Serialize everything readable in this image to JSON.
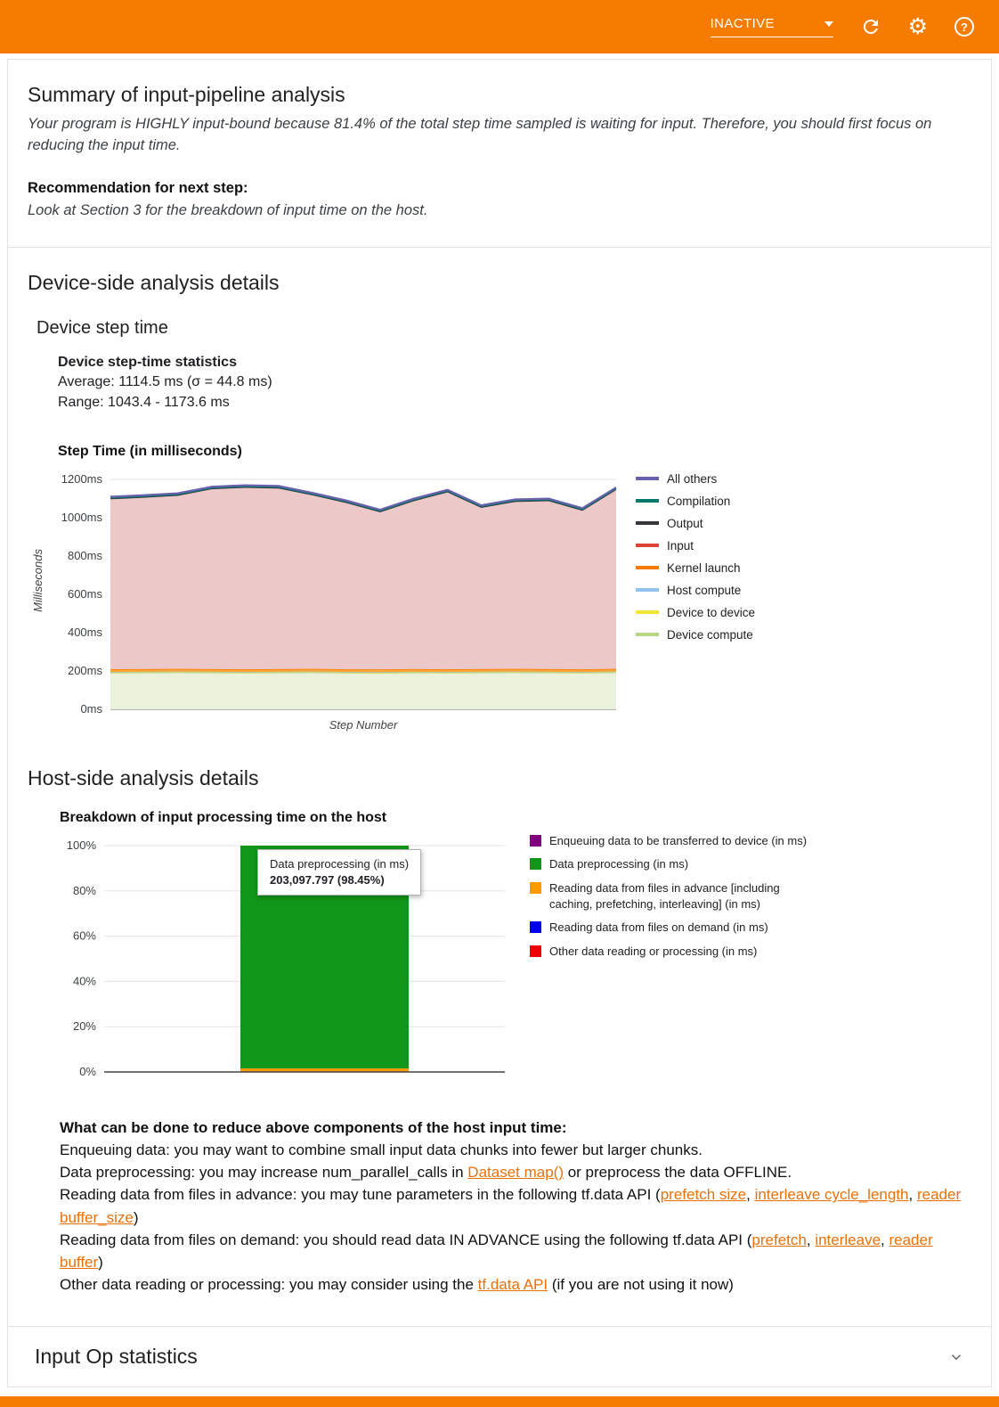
{
  "header": {
    "run_status": "INACTIVE"
  },
  "summary": {
    "title": "Summary of input-pipeline analysis",
    "conclusion": "Your program is HIGHLY input-bound because 81.4% of the total step time sampled is waiting for input. Therefore, you should first focus on reducing the input time.",
    "recommendation_label": "Recommendation for next step:",
    "recommendation_text": "Look at Section 3 for the breakdown of input time on the host."
  },
  "device_section": {
    "title": "Device-side analysis details",
    "subtitle": "Device step time",
    "stats_heading": "Device step-time statistics",
    "average_line": "Average: 1114.5 ms (σ = 44.8 ms)",
    "range_line": "Range: 1043.4 - 1173.6 ms",
    "chart_heading": "Step Time (in milliseconds)"
  },
  "host_section": {
    "title": "Host-side analysis details",
    "chart_heading": "Breakdown of input processing time on the host",
    "tooltip": {
      "title": "Data preprocessing (in ms)",
      "value": "203,097.797 (98.45%)"
    },
    "advice_heading": "What can be done to reduce above components of the host input time:",
    "advice_lines": [
      [
        {
          "t": "Enqueuing data: you may want to combine small input data chunks into fewer but larger chunks."
        }
      ],
      [
        {
          "t": "Data preprocessing: you may increase num_parallel_calls in "
        },
        {
          "t": "Dataset map()",
          "link": true
        },
        {
          "t": " or preprocess the data OFFLINE."
        }
      ],
      [
        {
          "t": "Reading data from files in advance: you may tune parameters in the following tf.data API ("
        },
        {
          "t": "prefetch size",
          "link": true
        },
        {
          "t": ", "
        },
        {
          "t": "interleave cycle_length",
          "link": true
        },
        {
          "t": ", "
        },
        {
          "t": "reader buffer_size",
          "link": true
        },
        {
          "t": ")"
        }
      ],
      [
        {
          "t": "Reading data from files on demand: you should read data IN ADVANCE using the following tf.data API ("
        },
        {
          "t": "prefetch",
          "link": true
        },
        {
          "t": ", "
        },
        {
          "t": "interleave",
          "link": true
        },
        {
          "t": ", "
        },
        {
          "t": "reader buffer",
          "link": true
        },
        {
          "t": ")"
        }
      ],
      [
        {
          "t": "Other data reading or processing: you may consider using the "
        },
        {
          "t": "tf.data API",
          "link": true
        },
        {
          "t": " (if you are not using it now)"
        }
      ]
    ]
  },
  "input_op_section": {
    "title": "Input Op statistics"
  },
  "chart_data": [
    {
      "type": "area",
      "stacked": true,
      "title": "Step Time (in milliseconds)",
      "xlabel": "Step Number",
      "ylabel": "Milliseconds",
      "ylim": [
        0,
        1200
      ],
      "ytick_labels": [
        "0ms",
        "200ms",
        "400ms",
        "600ms",
        "800ms",
        "1000ms",
        "1200ms"
      ],
      "legend_position": "right",
      "x": [
        1,
        2,
        3,
        4,
        5,
        6,
        7,
        8,
        9,
        10,
        11,
        12,
        13,
        14,
        15,
        16
      ],
      "series": [
        {
          "name": "Device compute",
          "color": "#B7D487",
          "fill": "#EAF2DB",
          "stroke_width": 1,
          "values": [
            189,
            190,
            191,
            190,
            189,
            190,
            191,
            189,
            188,
            190,
            189,
            190,
            191,
            190,
            189,
            191
          ]
        },
        {
          "name": "Device to device",
          "color": "#F2E635",
          "fill": "#F2E635",
          "stroke_width": 1,
          "values": [
            3,
            3,
            3,
            3,
            3,
            3,
            3,
            3,
            3,
            3,
            3,
            3,
            3,
            3,
            3,
            3
          ]
        },
        {
          "name": "Host compute",
          "color": "#92C2F0",
          "fill": "#92C2F0",
          "stroke_width": 1,
          "values": [
            3,
            3,
            3,
            3,
            3,
            3,
            3,
            3,
            3,
            3,
            3,
            3,
            3,
            3,
            3,
            3
          ]
        },
        {
          "name": "Kernel launch",
          "color": "#F57C00",
          "fill": "#FFA333",
          "stroke_width": 1.5,
          "values": [
            14,
            14,
            14,
            14,
            14,
            14,
            14,
            14,
            14,
            14,
            14,
            14,
            14,
            14,
            14,
            14
          ]
        },
        {
          "name": "Input",
          "color": "#DB4437",
          "fill": "#ECC8C8",
          "stroke_width": 0,
          "values": [
            887,
            894,
            903,
            938,
            947,
            942,
            905,
            867,
            820,
            876,
            923,
            841,
            871,
            876,
            827,
            933
          ]
        },
        {
          "name": "Output",
          "color": "#35373B",
          "fill": "#35373B",
          "stroke_width": 1,
          "values": [
            4,
            4,
            4,
            4,
            4,
            4,
            4,
            4,
            4,
            4,
            4,
            4,
            4,
            4,
            4,
            4
          ]
        },
        {
          "name": "Compilation",
          "color": "#00796B",
          "fill": "#00796B",
          "stroke_width": 1,
          "values": [
            4,
            4,
            4,
            4,
            4,
            4,
            4,
            4,
            4,
            4,
            4,
            4,
            4,
            4,
            4,
            4
          ]
        },
        {
          "name": "All others",
          "color": "#6961AE",
          "fill": "#6961AE",
          "stroke_width": 2,
          "values": [
            6,
            6,
            6,
            6,
            6,
            6,
            6,
            6,
            6,
            6,
            6,
            6,
            6,
            6,
            6,
            6
          ]
        }
      ]
    },
    {
      "type": "bar",
      "stacked": true,
      "title": "Breakdown of input processing time on the host",
      "xlabel": "",
      "ylabel": "",
      "ylim": [
        0,
        100
      ],
      "ytick_labels": [
        "0%",
        "20%",
        "40%",
        "60%",
        "80%",
        "100%"
      ],
      "legend_position": "right",
      "series": [
        {
          "name": "Other data reading or processing (in ms)",
          "color": "#EE0000",
          "percent": 0
        },
        {
          "name": "Reading data from files on demand (in ms)",
          "color": "#0000EE",
          "percent": 0
        },
        {
          "name": "Reading data from files in advance [including caching, prefetching, interleaving] (in ms)",
          "color": "#FF9900",
          "percent": 1.55
        },
        {
          "name": "Data preprocessing (in ms)",
          "color": "#109618",
          "percent": 98.45,
          "value_ms": "203,097.797"
        },
        {
          "name": "Enqueuing data to be transferred to device (in ms)",
          "color": "#800080",
          "percent": 0
        }
      ]
    }
  ]
}
